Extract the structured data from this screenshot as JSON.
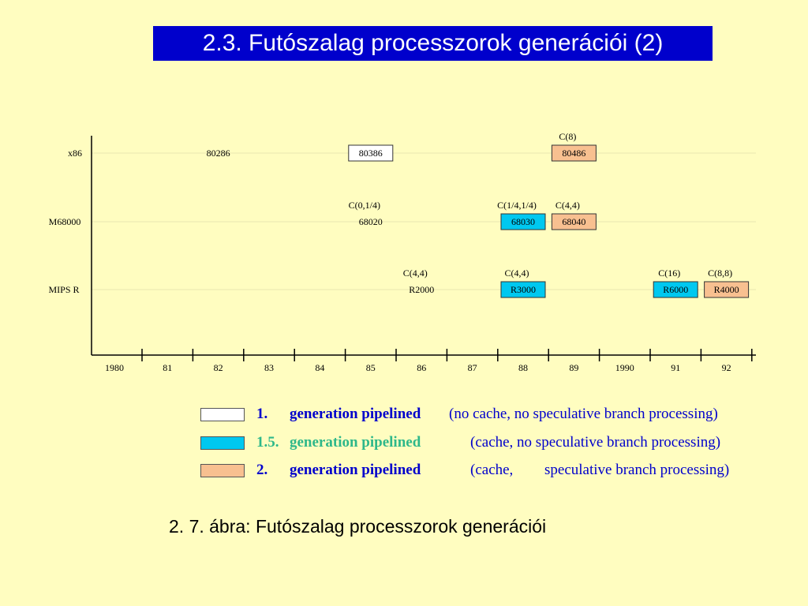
{
  "title": "2.3. Futószalag processzorok generációi (2)",
  "colors": {
    "background": "#FFFDC0",
    "title_bg": "#0000CC",
    "gen1": "#FFFFFF",
    "gen15": "#00C8F0",
    "gen2": "#F8C090",
    "legend_blue": "#0000CC",
    "legend_green": "#2EB88A"
  },
  "timeline": {
    "rows": [
      {
        "label": "x86"
      },
      {
        "label": "M68000"
      },
      {
        "label": "MIPS R"
      }
    ],
    "years": [
      "1980",
      "81",
      "82",
      "83",
      "84",
      "85",
      "86",
      "87",
      "88",
      "89",
      "1990",
      "91",
      "92"
    ],
    "processors": [
      {
        "name": "80286",
        "row": 0,
        "year": 82,
        "gen": "none",
        "cache": ""
      },
      {
        "name": "80386",
        "row": 0,
        "year": 85,
        "gen": "1",
        "cache": ""
      },
      {
        "name": "80486",
        "row": 0,
        "year": 89,
        "gen": "2",
        "cache": "C(8)"
      },
      {
        "name": "68020",
        "row": 1,
        "year": 85,
        "gen": "none",
        "cache": "C(0,1/4)"
      },
      {
        "name": "68030",
        "row": 1,
        "year": 88,
        "gen": "1.5",
        "cache": "C(1/4,1/4)"
      },
      {
        "name": "68040",
        "row": 1,
        "year": 89,
        "gen": "2",
        "cache": "C(4,4)"
      },
      {
        "name": "R2000",
        "row": 2,
        "year": 86,
        "gen": "none",
        "cache": "C(4,4)"
      },
      {
        "name": "R3000",
        "row": 2,
        "year": 88,
        "gen": "1.5",
        "cache": "C(4,4)"
      },
      {
        "name": "R6000",
        "row": 2,
        "year": 91,
        "gen": "1.5",
        "cache": "C(16)"
      },
      {
        "name": "R4000",
        "row": 2,
        "year": 92,
        "gen": "2",
        "cache": "C(8,8)"
      }
    ]
  },
  "legend": [
    {
      "gen": "1",
      "number": "1.",
      "label": "generation pipelined",
      "note": "(no cache, no speculative branch processing)"
    },
    {
      "gen": "1.5",
      "number": "1.5.",
      "label": "generation pipelined",
      "note": "(cache, no speculative branch processing)"
    },
    {
      "gen": "2",
      "number": "2.",
      "label": "generation pipelined",
      "note_a": "(cache,",
      "note_b": "speculative branch processing)"
    }
  ],
  "caption": "2. 7. ábra: Futószalag processzorok generációi"
}
